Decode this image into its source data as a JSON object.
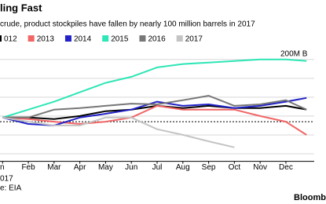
{
  "chart_data": {
    "type": "line",
    "title": "ling Fast",
    "subtitle": "crude, product stockpiles have fallen by nearly 100 million barrels in 2017",
    "x_sub_label": "017",
    "source": "e: EIA",
    "brand": "Bloomb",
    "x": [
      0,
      1,
      2,
      3,
      4,
      5,
      6,
      7,
      8,
      9,
      10,
      11,
      11.8
    ],
    "xlim": [
      -0.1,
      12.1
    ],
    "xticks": [
      {
        "value": 0,
        "label": "n"
      },
      {
        "value": 1,
        "label": "Feb"
      },
      {
        "value": 2,
        "label": "Mar"
      },
      {
        "value": 3,
        "label": "Apr"
      },
      {
        "value": 4,
        "label": "May"
      },
      {
        "value": 5,
        "label": "Jun"
      },
      {
        "value": 6,
        "label": "Jul"
      },
      {
        "value": 7,
        "label": "Aug"
      },
      {
        "value": 8,
        "label": "Sep"
      },
      {
        "value": 9,
        "label": "Oct"
      },
      {
        "value": 10,
        "label": "Nov"
      },
      {
        "value": 11,
        "label": "Dec"
      }
    ],
    "ylim": [
      -70,
      210
    ],
    "yticks": [
      {
        "value": 200,
        "label": "200M B"
      }
    ],
    "grid_lines": [
      150,
      100,
      50,
      0,
      -50
    ],
    "reference_line": 35,
    "series": [
      {
        "name": "012",
        "color": "#000000",
        "values": [
          46,
          46,
          42,
          50,
          63,
          67,
          77,
          71,
          77,
          71,
          71,
          77,
          67
        ]
      },
      {
        "name": "2013",
        "color": "#f26565",
        "values": [
          46,
          42,
          35,
          29,
          35,
          46,
          77,
          67,
          67,
          67,
          50,
          35,
          0
        ]
      },
      {
        "name": "2014",
        "color": "#2222c8",
        "values": [
          46,
          29,
          25,
          46,
          56,
          67,
          88,
          77,
          81,
          71,
          77,
          88,
          98
        ]
      },
      {
        "name": "2015",
        "color": "#2ee6b6",
        "values": [
          46,
          67,
          88,
          113,
          138,
          154,
          179,
          188,
          192,
          196,
          200,
          200,
          196
        ]
      },
      {
        "name": "2016",
        "color": "#777777",
        "values": [
          46,
          46,
          67,
          71,
          77,
          83,
          81,
          92,
          104,
          77,
          81,
          92,
          67
        ]
      },
      {
        "name": "2017",
        "color": "#c4c4c4",
        "values": [
          46,
          35,
          25,
          25,
          46,
          46,
          15,
          0,
          -17,
          -33,
          null,
          null,
          null
        ]
      }
    ]
  }
}
